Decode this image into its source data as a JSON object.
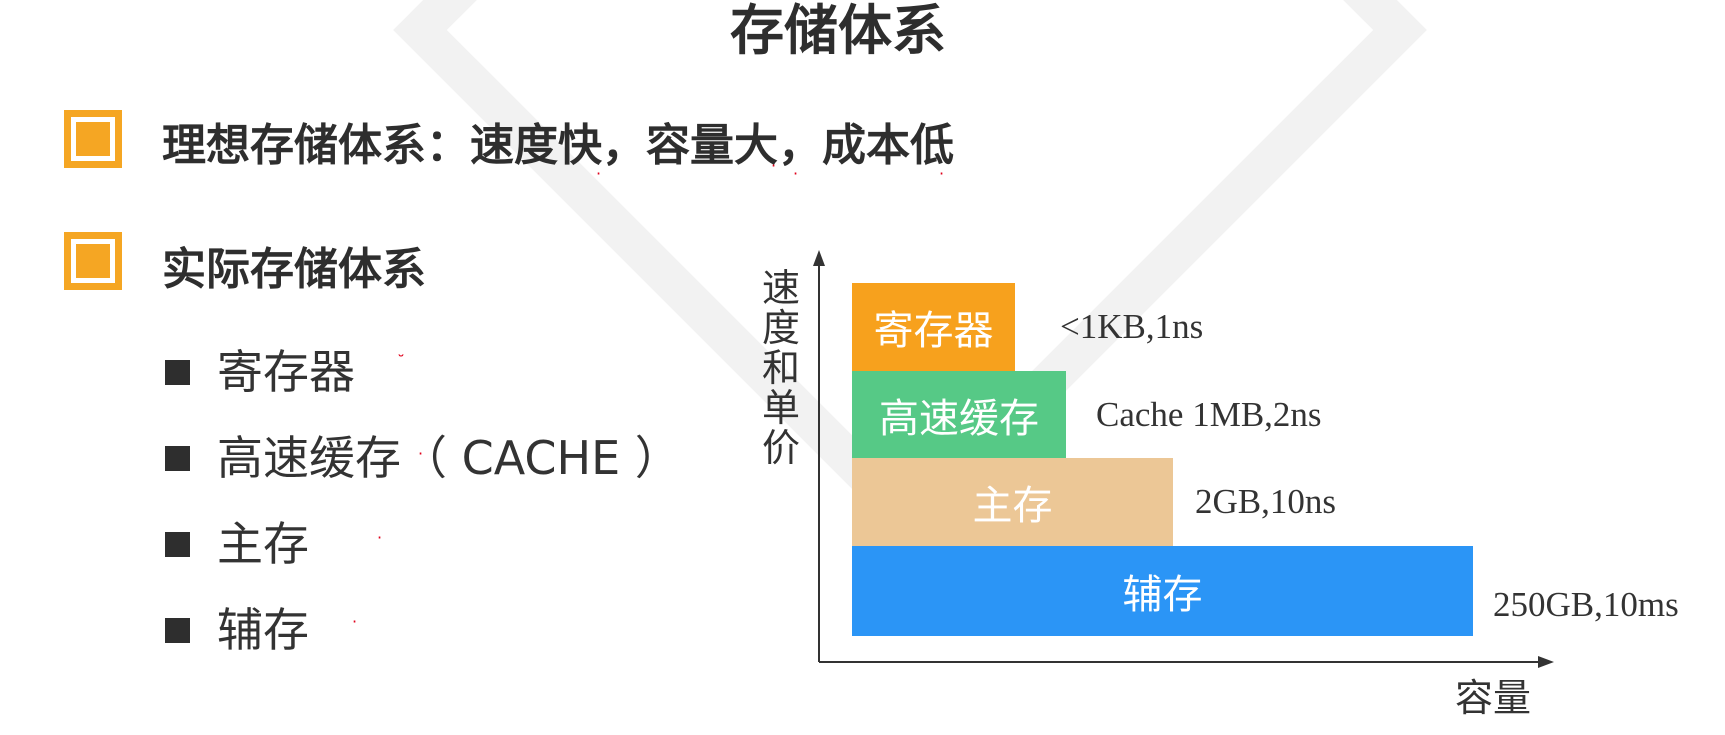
{
  "slide": {
    "title": "存储体系",
    "points": [
      {
        "text": "理想存储体系：速度快，容量大，成本低"
      },
      {
        "text": "实际存储体系"
      }
    ],
    "sub_items": [
      {
        "label": "寄存器"
      },
      {
        "label": "高速缓存（ CACHE ）"
      },
      {
        "label": "主存"
      },
      {
        "label": "辅存"
      }
    ]
  },
  "diagram": {
    "y_axis_label": [
      "速",
      "度",
      "和",
      "单",
      "价"
    ],
    "x_axis_label": "容量",
    "levels": [
      {
        "name": "寄存器",
        "spec": "<1KB,1ns",
        "color": "#f7a11d"
      },
      {
        "name": "高速缓存",
        "spec": "Cache 1MB,2ns",
        "color": "#56c986"
      },
      {
        "name": "主存",
        "spec": "2GB,10ns",
        "color": "#ecc796"
      },
      {
        "name": "辅存",
        "spec": "250GB,10ms",
        "color": "#2b95f6"
      }
    ]
  },
  "colors": {
    "accent": "#f5a623",
    "text": "#2e2e2e",
    "watermark": "#f2f2f2"
  }
}
